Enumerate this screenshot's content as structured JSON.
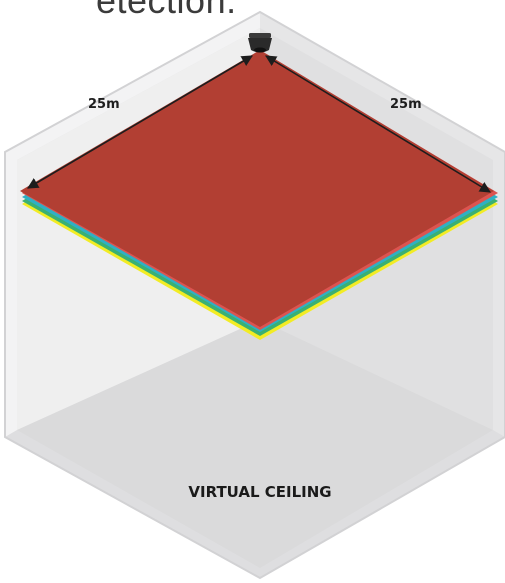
{
  "caption": "etection.",
  "diagram": {
    "dimensions": [
      {
        "label": "25m"
      },
      {
        "label": "25m"
      }
    ],
    "footer_label": "VIRTUAL CEILING",
    "colors": {
      "plane_top": "#b23f33",
      "plane_red_edge": "#dc5450",
      "plane_cyan_edge": "#2fb0c4",
      "plane_green_edge": "#3bb072",
      "plane_yellow_edge": "#f2ec24",
      "wall_left": "#f0f0f1",
      "wall_right": "#e2e2e3",
      "ceiling": "#ebebec",
      "floor": "#d9d9da",
      "hex_border": "#d5d5d6",
      "arrow": "#1d1d1d",
      "sensor": "#2a2a2a"
    },
    "icons": {
      "sensor": "ceiling-sensor-icon"
    }
  }
}
